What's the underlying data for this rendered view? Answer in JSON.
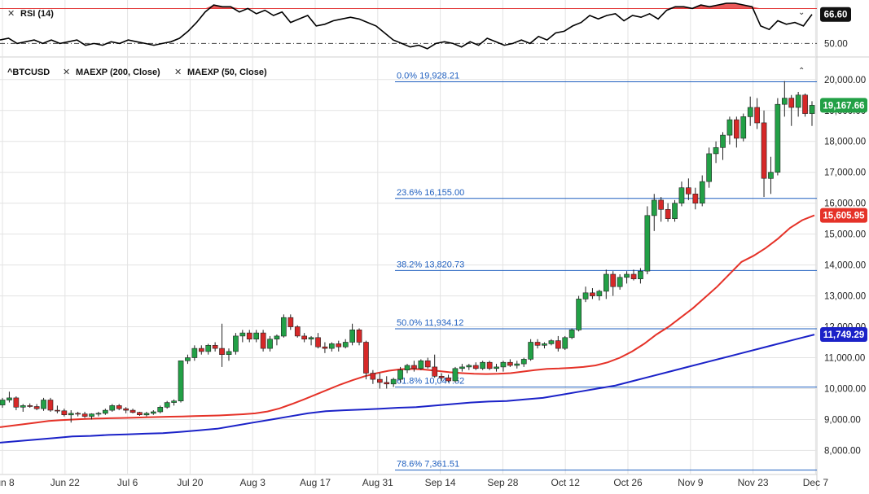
{
  "rsi_panel": {
    "label": "RSI (14)",
    "value_badge": "66.60",
    "tick_50": "50.00",
    "collapse_icon": "chevron-down-icon"
  },
  "price_panel": {
    "symbol": "^BTCUSD",
    "indicators": [
      "MAEXP (200, Close)",
      "MAEXP (50, Close)"
    ],
    "collapse_icon": "chevron-up-icon"
  },
  "colors": {
    "up_candle": "#22a046",
    "down_candle": "#d62828",
    "ema50": "#e53228",
    "ema200": "#1b22c8",
    "fib_line": "#1f5fbf",
    "rsi_line": "#000000",
    "rsi_overbought_fill": "#e63c3c"
  },
  "chart_data": {
    "type": "candlestick",
    "x_tick_labels": [
      "Jun 8",
      "Jun 22",
      "Jul 6",
      "Jul 20",
      "Aug 3",
      "Aug 17",
      "Aug 31",
      "Sep 14",
      "Sep 28",
      "Oct 12",
      "Oct 26",
      "Nov 9",
      "Nov 23",
      "Dec 7"
    ],
    "y_tick_labels": [
      "8,000.00",
      "9,000.00",
      "10,000.00",
      "11,000.00",
      "12,000.00",
      "13,000.00",
      "14,000.00",
      "15,000.00",
      "16,000.00",
      "17,000.00",
      "18,000.00",
      "19,000.00",
      "20,000.00"
    ],
    "ylim": [
      7300,
      20600
    ],
    "fib_levels": [
      {
        "label": "0.0% 19,928.21",
        "value": 19928.21
      },
      {
        "label": "23.6% 16,155.00",
        "value": 16155.0
      },
      {
        "label": "38.2% 13,820.73",
        "value": 13820.73
      },
      {
        "label": "50.0% 11,934.12",
        "value": 11934.12
      },
      {
        "label": "61.8% 10,047.52",
        "value": 10047.52
      },
      {
        "label": "78.6% 7,361.51",
        "value": 7361.51
      }
    ],
    "last_price_labels": [
      {
        "label": "19,167.66",
        "value": 19167.66,
        "color": "#22a046"
      },
      {
        "label": "15,605.95",
        "value": 15605.95,
        "color": "#e53228"
      },
      {
        "label": "11,749.29",
        "value": 11749.29,
        "color": "#1b22c8"
      }
    ],
    "candles": [
      [
        9470,
        9700,
        9380,
        9630
      ],
      [
        9630,
        9900,
        9550,
        9700
      ],
      [
        9700,
        9750,
        9300,
        9400
      ],
      [
        9400,
        9500,
        9250,
        9450
      ],
      [
        9450,
        9520,
        9380,
        9420
      ],
      [
        9420,
        9500,
        9300,
        9350
      ],
      [
        9350,
        9700,
        9280,
        9630
      ],
      [
        9630,
        9700,
        9250,
        9300
      ],
      [
        9300,
        9450,
        9200,
        9280
      ],
      [
        9280,
        9350,
        9100,
        9150
      ],
      [
        9150,
        9300,
        8900,
        9200
      ],
      [
        9200,
        9250,
        9100,
        9180
      ],
      [
        9180,
        9250,
        9050,
        9100
      ],
      [
        9100,
        9200,
        9000,
        9180
      ],
      [
        9180,
        9250,
        9100,
        9200
      ],
      [
        9200,
        9350,
        9150,
        9300
      ],
      [
        9300,
        9500,
        9250,
        9450
      ],
      [
        9450,
        9500,
        9300,
        9350
      ],
      [
        9350,
        9400,
        9200,
        9300
      ],
      [
        9300,
        9350,
        9200,
        9230
      ],
      [
        9230,
        9250,
        9120,
        9150
      ],
      [
        9150,
        9250,
        9100,
        9200
      ],
      [
        9200,
        9300,
        9150,
        9250
      ],
      [
        9250,
        9450,
        9200,
        9400
      ],
      [
        9400,
        9600,
        9350,
        9550
      ],
      [
        9550,
        9650,
        9450,
        9600
      ],
      [
        9600,
        10900,
        9550,
        10900
      ],
      [
        10900,
        11100,
        10800,
        11000
      ],
      [
        11000,
        11400,
        10900,
        11300
      ],
      [
        11300,
        11400,
        11100,
        11200
      ],
      [
        11200,
        11450,
        11100,
        11400
      ],
      [
        11400,
        11500,
        11200,
        11300
      ],
      [
        11300,
        12100,
        10700,
        11100
      ],
      [
        11100,
        11300,
        10900,
        11200
      ],
      [
        11200,
        11800,
        11100,
        11700
      ],
      [
        11700,
        11900,
        11500,
        11800
      ],
      [
        11800,
        11900,
        11500,
        11600
      ],
      [
        11600,
        11900,
        11500,
        11800
      ],
      [
        11800,
        11900,
        11200,
        11300
      ],
      [
        11300,
        11700,
        11200,
        11600
      ],
      [
        11600,
        11750,
        11400,
        11700
      ],
      [
        11700,
        12400,
        11650,
        12300
      ],
      [
        12300,
        12400,
        11900,
        12000
      ],
      [
        12000,
        12050,
        11650,
        11700
      ],
      [
        11700,
        11800,
        11500,
        11600
      ],
      [
        11600,
        11700,
        11400,
        11650
      ],
      [
        11650,
        11800,
        11300,
        11350
      ],
      [
        11350,
        11500,
        11150,
        11300
      ],
      [
        11300,
        11500,
        11200,
        11450
      ],
      [
        11450,
        11550,
        11200,
        11350
      ],
      [
        11350,
        11600,
        11300,
        11500
      ],
      [
        11500,
        12100,
        11400,
        11900
      ],
      [
        11900,
        11950,
        11400,
        11500
      ],
      [
        11500,
        11550,
        10300,
        10500
      ],
      [
        10500,
        10600,
        10150,
        10300
      ],
      [
        10300,
        10500,
        10000,
        10200
      ],
      [
        10200,
        10400,
        10000,
        10150
      ],
      [
        10150,
        10350,
        10050,
        10300
      ],
      [
        10300,
        10700,
        10200,
        10600
      ],
      [
        10600,
        10800,
        10500,
        10750
      ],
      [
        10750,
        10900,
        10550,
        10650
      ],
      [
        10650,
        10950,
        10600,
        10900
      ],
      [
        10900,
        11000,
        10650,
        10700
      ],
      [
        10700,
        11100,
        10350,
        10400
      ],
      [
        10400,
        10500,
        10250,
        10350
      ],
      [
        10350,
        10450,
        10200,
        10250
      ],
      [
        10250,
        10700,
        10200,
        10650
      ],
      [
        10650,
        10800,
        10550,
        10700
      ],
      [
        10700,
        10800,
        10600,
        10750
      ],
      [
        10750,
        10850,
        10600,
        10650
      ],
      [
        10650,
        10900,
        10600,
        10850
      ],
      [
        10850,
        10900,
        10600,
        10650
      ],
      [
        10650,
        10800,
        10550,
        10700
      ],
      [
        10700,
        10900,
        10550,
        10850
      ],
      [
        10850,
        10950,
        10700,
        10750
      ],
      [
        10750,
        10900,
        10650,
        10800
      ],
      [
        10800,
        11000,
        10700,
        10950
      ],
      [
        10950,
        11600,
        10900,
        11500
      ],
      [
        11500,
        11600,
        11300,
        11400
      ],
      [
        11400,
        11500,
        11300,
        11450
      ],
      [
        11450,
        11600,
        11400,
        11550
      ],
      [
        11550,
        11700,
        11200,
        11300
      ],
      [
        11300,
        11700,
        11250,
        11650
      ],
      [
        11650,
        11950,
        11600,
        11900
      ],
      [
        11900,
        13000,
        11850,
        12900
      ],
      [
        12900,
        13300,
        12800,
        13100
      ],
      [
        13100,
        13250,
        12900,
        13000
      ],
      [
        13000,
        13200,
        12850,
        13150
      ],
      [
        13150,
        13850,
        12900,
        13700
      ],
      [
        13700,
        13800,
        13000,
        13300
      ],
      [
        13300,
        13700,
        13200,
        13600
      ],
      [
        13600,
        13800,
        13400,
        13700
      ],
      [
        13700,
        13850,
        13500,
        13550
      ],
      [
        13550,
        13900,
        13400,
        13800
      ],
      [
        13800,
        15900,
        13700,
        15600
      ],
      [
        15600,
        16300,
        15100,
        16100
      ],
      [
        16100,
        16200,
        15400,
        15800
      ],
      [
        15800,
        16000,
        15400,
        15500
      ],
      [
        15500,
        16100,
        15400,
        16000
      ],
      [
        16000,
        16700,
        15900,
        16500
      ],
      [
        16500,
        16800,
        16100,
        16300
      ],
      [
        16300,
        16500,
        15800,
        16000
      ],
      [
        16000,
        16900,
        15900,
        16700
      ],
      [
        16700,
        17800,
        16500,
        17600
      ],
      [
        17600,
        18000,
        17300,
        17800
      ],
      [
        17800,
        18300,
        17400,
        18200
      ],
      [
        18200,
        18800,
        17900,
        18700
      ],
      [
        18700,
        18800,
        17800,
        18100
      ],
      [
        18100,
        18900,
        18000,
        18800
      ],
      [
        18800,
        19450,
        18500,
        19100
      ],
      [
        19100,
        19400,
        18400,
        18600
      ],
      [
        18600,
        19000,
        16200,
        16800
      ],
      [
        16800,
        17500,
        16300,
        17000
      ],
      [
        17000,
        19400,
        16900,
        19200
      ],
      [
        19200,
        19950,
        18800,
        19400
      ],
      [
        19400,
        19500,
        18500,
        19100
      ],
      [
        19100,
        19600,
        18800,
        19500
      ],
      [
        19500,
        19550,
        18800,
        18900
      ],
      [
        18900,
        19300,
        18500,
        19167.66
      ]
    ],
    "ema50": [
      8750,
      8800,
      8850,
      8900,
      8950,
      8980,
      9000,
      9020,
      9030,
      9040,
      9050,
      9060,
      9070,
      9080,
      9090,
      9100,
      9110,
      9120,
      9130,
      9150,
      9170,
      9200,
      9260,
      9360,
      9500,
      9650,
      9810,
      9970,
      10130,
      10270,
      10400,
      10500,
      10580,
      10630,
      10640,
      10610,
      10570,
      10530,
      10500,
      10480,
      10470,
      10480,
      10500,
      10550,
      10600,
      10640,
      10650,
      10670,
      10700,
      10750,
      10850,
      11000,
      11200,
      11450,
      11750,
      12000,
      12300,
      12600,
      12950,
      13300,
      13700,
      14100,
      14300,
      14550,
      14850,
      15200,
      15450,
      15605.95
    ],
    "ema200": [
      8250,
      8300,
      8350,
      8400,
      8450,
      8470,
      8500,
      8520,
      8540,
      8560,
      8600,
      8650,
      8700,
      8800,
      8900,
      9000,
      9100,
      9200,
      9270,
      9300,
      9320,
      9350,
      9380,
      9400,
      9450,
      9500,
      9550,
      9580,
      9600,
      9650,
      9700,
      9800,
      9900,
      10000,
      10100,
      10250,
      10400,
      10550,
      10700,
      10850,
      11000,
      11150,
      11300,
      11450,
      11600,
      11749.29
    ],
    "rsi": {
      "label": "RSI (14)",
      "last": 66.6,
      "ylim": [
        46,
        73
      ],
      "overbought": 70,
      "midline": 50,
      "values": [
        52,
        53,
        50,
        51,
        52,
        50,
        52,
        50,
        51,
        52,
        49,
        50,
        49,
        51,
        50,
        52,
        51,
        50,
        49,
        50,
        51,
        53,
        57,
        62,
        68,
        72,
        71,
        71,
        68,
        70,
        67,
        69,
        66,
        68,
        62,
        64,
        66,
        60,
        61,
        63,
        64,
        65,
        64,
        62,
        60,
        56,
        52,
        50,
        48,
        49,
        47,
        50,
        51,
        50,
        48,
        51,
        49,
        53,
        51,
        49,
        50,
        52,
        50,
        54,
        52,
        56,
        57,
        60,
        62,
        66,
        64,
        66,
        67,
        63,
        66,
        65,
        67,
        64,
        69,
        71,
        71,
        70,
        72,
        71,
        72,
        73,
        73,
        72,
        71,
        60,
        58,
        63,
        61,
        62,
        60,
        66.6
      ]
    }
  }
}
